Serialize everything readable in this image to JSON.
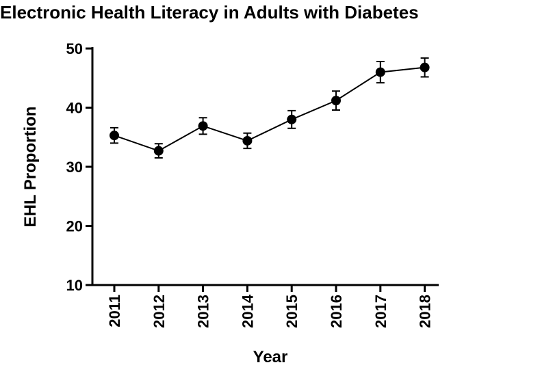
{
  "chart_data": {
    "type": "line",
    "title": "Electronic Health Literacy in Adults with Diabetes",
    "x_label": "Year",
    "y_label": "EHL Proportion",
    "categories": [
      "2011",
      "2012",
      "2013",
      "2014",
      "2015",
      "2016",
      "2017",
      "2018"
    ],
    "values": [
      35.3,
      32.7,
      36.9,
      34.4,
      38.0,
      41.2,
      46.0,
      46.8
    ],
    "errors": [
      1.3,
      1.2,
      1.4,
      1.3,
      1.5,
      1.6,
      1.8,
      1.6
    ],
    "color": "#000000",
    "ylim": [
      10,
      50
    ],
    "yticks": [
      10,
      20,
      30,
      40,
      50
    ],
    "grid": false
  }
}
